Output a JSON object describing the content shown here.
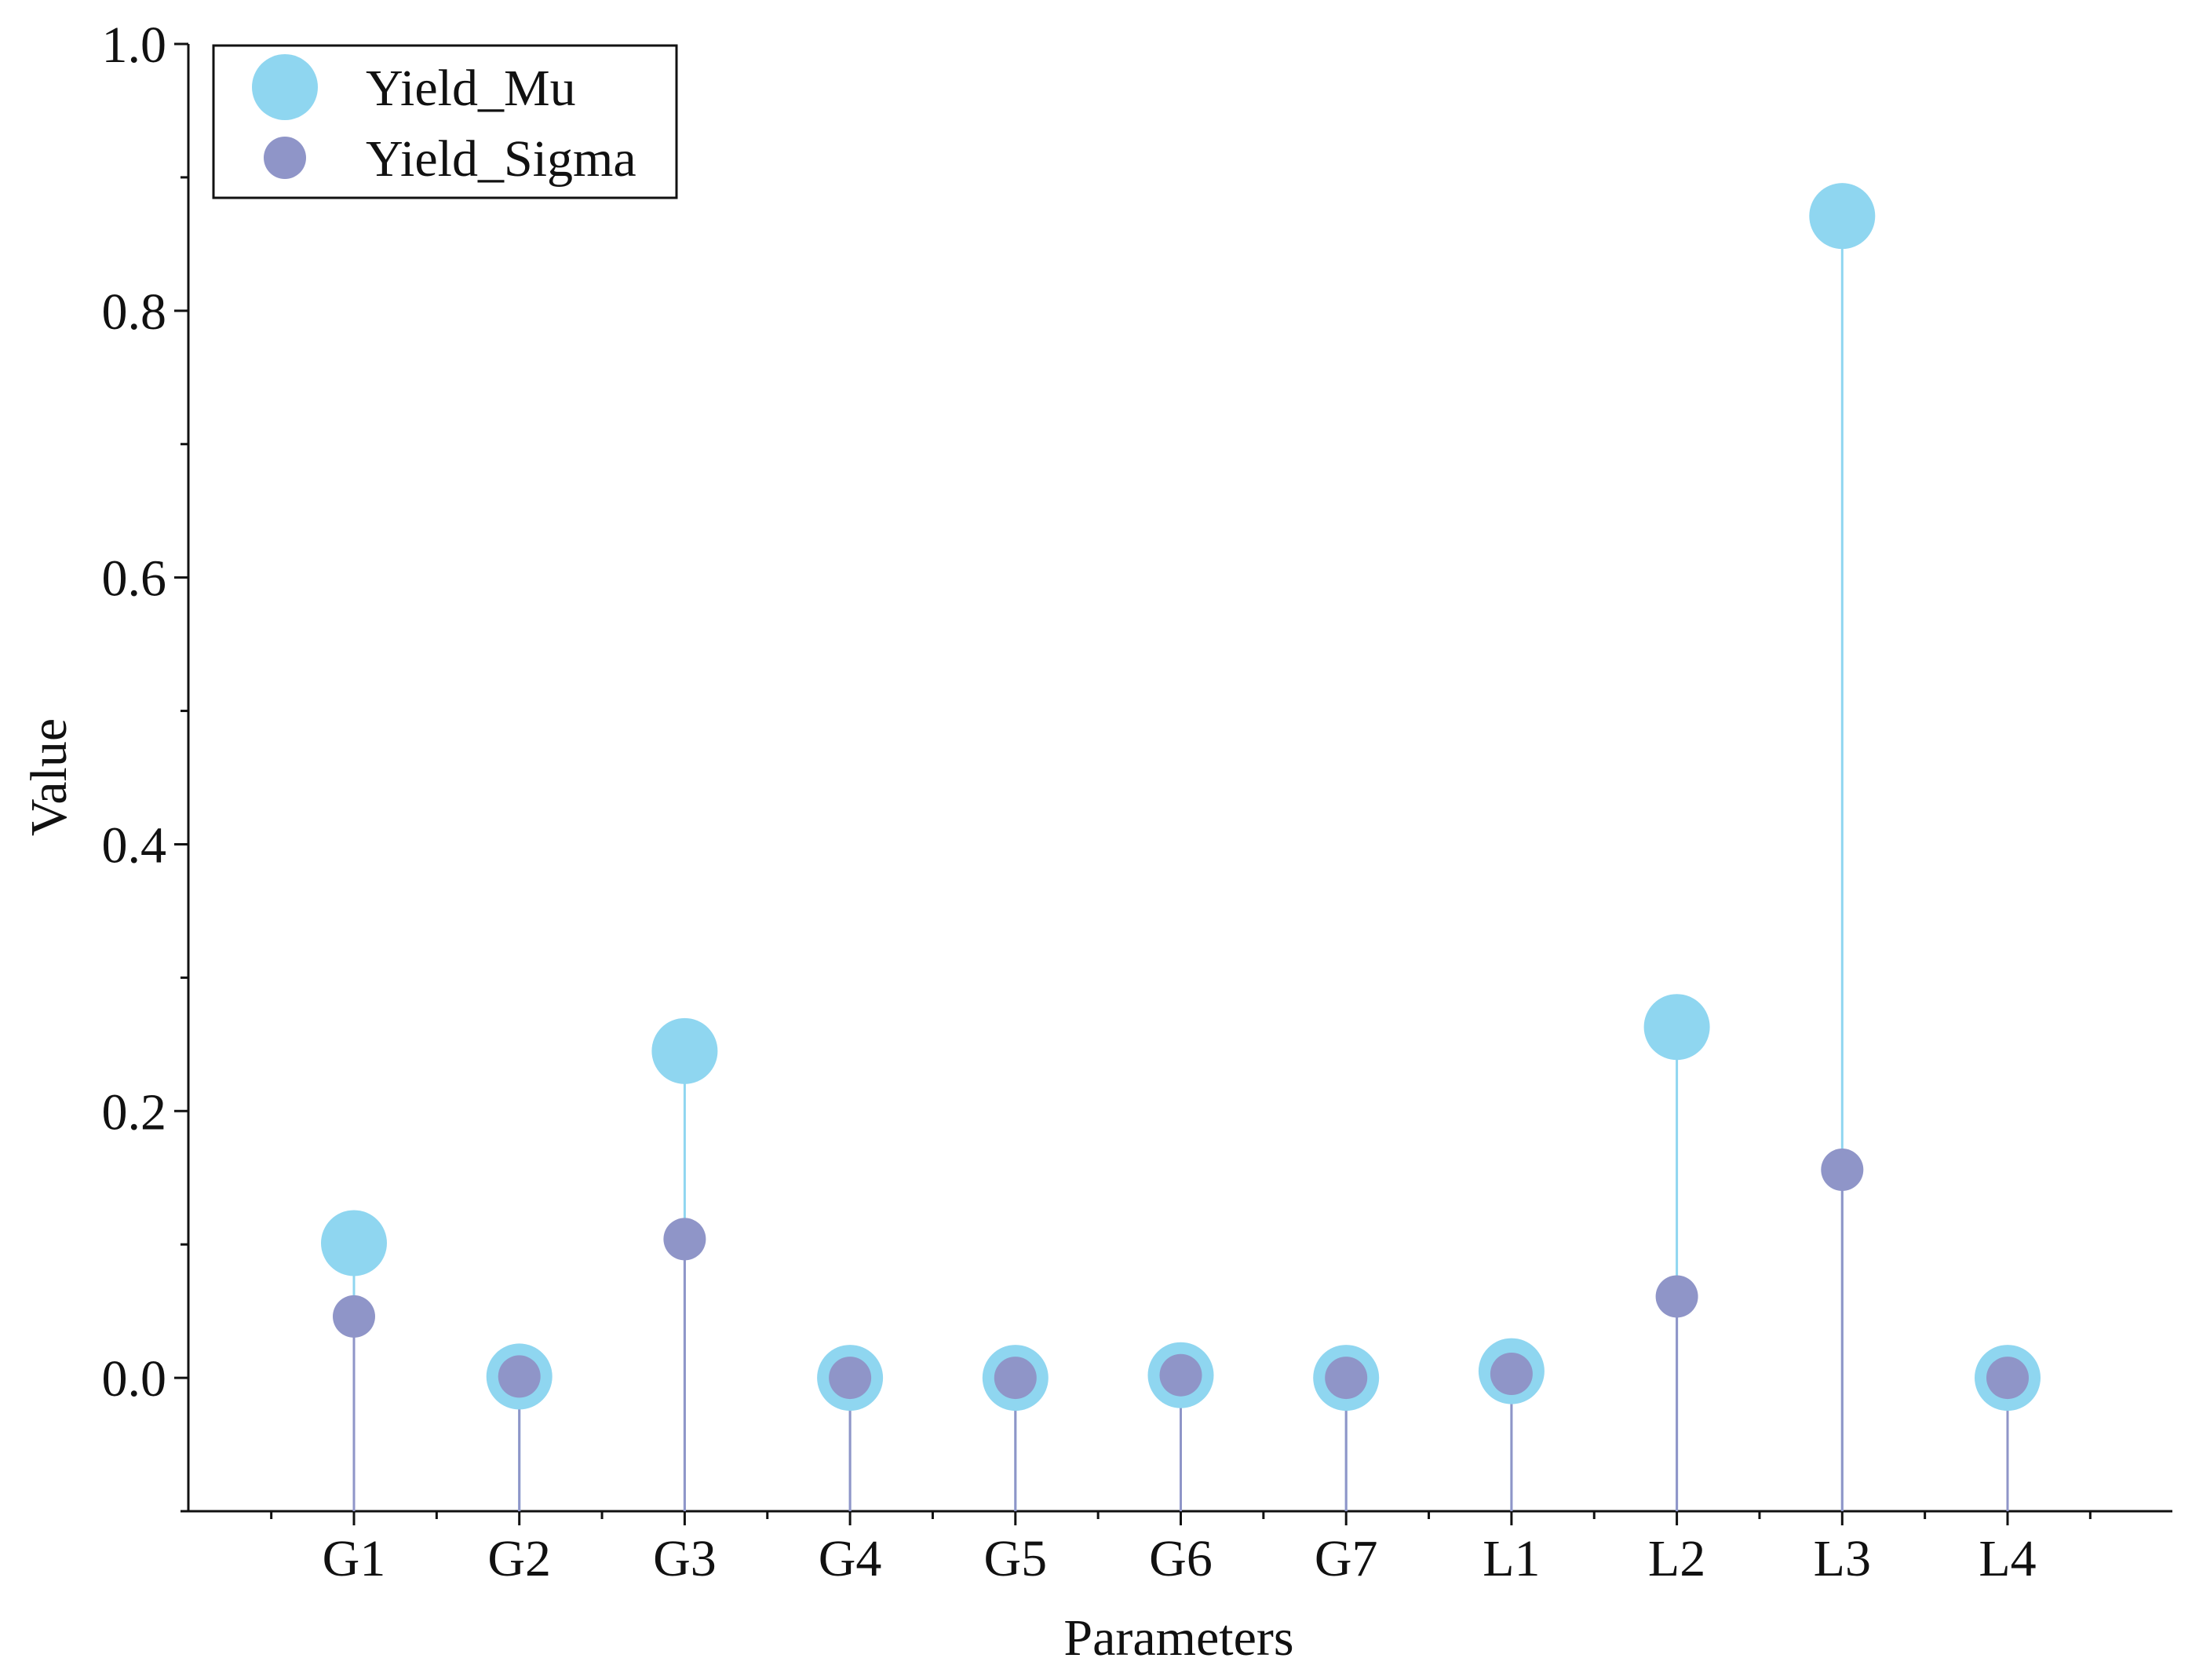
{
  "chart_data": {
    "type": "scatter",
    "style": "lollipop",
    "xlabel": "Parameters",
    "ylabel": "Value",
    "categories": [
      "G1",
      "G2",
      "G3",
      "G4",
      "G5",
      "G6",
      "G7",
      "L1",
      "L2",
      "L3",
      "L4"
    ],
    "ylim": [
      -0.1,
      1.0
    ],
    "y_ticks": [
      "0.0",
      "0.2",
      "0.4",
      "0.6",
      "0.8",
      "1.0"
    ],
    "grid": false,
    "legend_position": "top-left",
    "series": [
      {
        "name": "Yield_Mu",
        "color": "#8fd6f0",
        "values": [
          0.101,
          0.001,
          0.245,
          0.0,
          0.0,
          0.002,
          0.0,
          0.005,
          0.263,
          0.871,
          0.0
        ]
      },
      {
        "name": "Yield_Sigma",
        "color": "#8f95c8",
        "values": [
          0.046,
          0.001,
          0.104,
          0.0,
          0.0,
          0.002,
          0.0,
          0.003,
          0.061,
          0.156,
          0.0
        ]
      }
    ]
  }
}
